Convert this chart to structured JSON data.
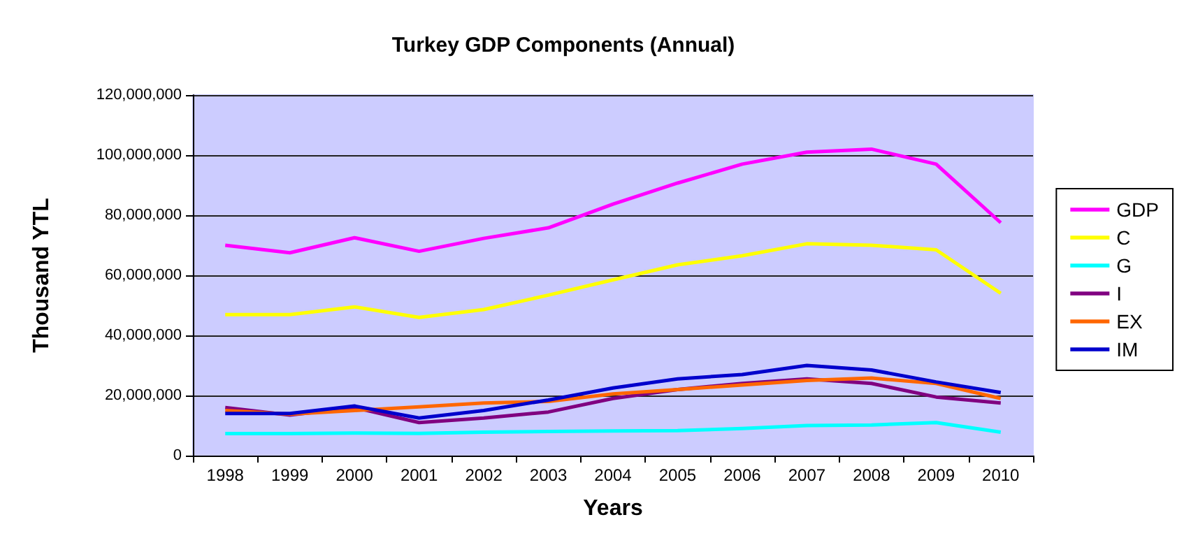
{
  "chart_data": {
    "type": "line",
    "title": "Turkey GDP Components (Annual)",
    "xlabel": "Years",
    "ylabel": "Thousand YTL",
    "categories": [
      "1998",
      "1999",
      "2000",
      "2001",
      "2002",
      "2003",
      "2004",
      "2005",
      "2006",
      "2007",
      "2008",
      "2009",
      "2010"
    ],
    "series": [
      {
        "name": "GDP",
        "color": "#ff00ff",
        "values": [
          70000000,
          67500000,
          72500000,
          68000000,
          72300000,
          75800000,
          83700000,
          90700000,
          97000000,
          101000000,
          102000000,
          97000000,
          77500000
        ]
      },
      {
        "name": "C",
        "color": "#ffff00",
        "values": [
          46900000,
          46900000,
          49500000,
          46000000,
          48600000,
          53400000,
          58500000,
          63500000,
          66500000,
          70500000,
          70000000,
          68500000,
          54000000
        ]
      },
      {
        "name": "G",
        "color": "#00ffff",
        "values": [
          7300000,
          7300000,
          7500000,
          7400000,
          7800000,
          8000000,
          8200000,
          8300000,
          9000000,
          10000000,
          10200000,
          11000000,
          7800000
        ]
      },
      {
        "name": "I",
        "color": "#800080",
        "values": [
          16000000,
          13500000,
          16000000,
          11000000,
          12500000,
          14500000,
          19000000,
          22000000,
          24000000,
          25500000,
          24000000,
          19500000,
          17500000
        ]
      },
      {
        "name": "EX",
        "color": "#ff6600",
        "values": [
          15000000,
          13800000,
          15000000,
          16200000,
          17500000,
          18000000,
          20500000,
          22000000,
          23500000,
          25000000,
          25800000,
          24000000,
          19000000
        ]
      },
      {
        "name": "IM",
        "color": "#0000cc",
        "values": [
          14000000,
          14000000,
          16500000,
          12500000,
          15000000,
          18500000,
          22500000,
          25500000,
          27000000,
          30000000,
          28500000,
          24500000,
          21000000
        ]
      }
    ],
    "ylim": [
      0,
      120000000
    ],
    "yticks": [
      0,
      {
        "value": 20000000,
        "label": "20,000,000"
      },
      {
        "value": 40000000,
        "label": "40,000,000"
      },
      {
        "value": 60000000,
        "label": "60,000,000"
      },
      {
        "value": 80000000,
        "label": "80,000,000"
      },
      {
        "value": 100000000,
        "label": "100,000,000"
      },
      {
        "value": 120000000,
        "label": "120,000,000"
      }
    ],
    "grid": "y",
    "legend": "right",
    "marker": "none",
    "line_style": "solid"
  }
}
